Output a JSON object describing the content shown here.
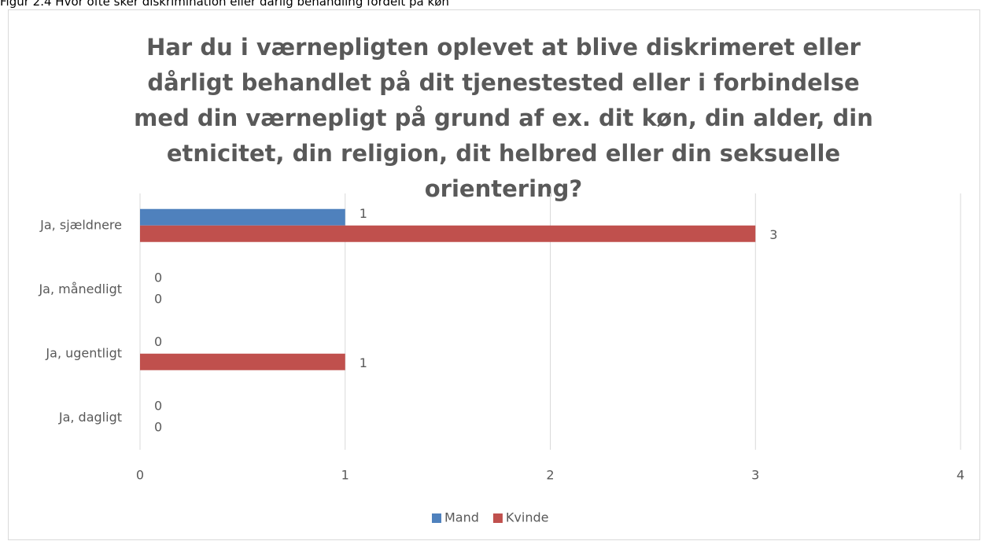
{
  "caption": "Figur 2.4 Hvor ofte sker diskrimination eller dårlig behandling fordelt på køn",
  "chart_data": {
    "type": "bar",
    "orientation": "horizontal",
    "title": "Har du i værnepligten oplevet at blive diskrimeret eller dårligt behandlet på dit tjenestested eller i forbindelse med din værnepligt på grund af ex. dit køn, din alder, din etnicitet, din religion, dit helbred eller din seksuelle orientering?",
    "categories": [
      "Ja, sjældnere",
      "Ja, månedligt",
      "Ja, ugentligt",
      "Ja, dagligt"
    ],
    "series": [
      {
        "name": "Mand",
        "color": "#4f81bd",
        "values": [
          1,
          0,
          0,
          0
        ]
      },
      {
        "name": "Kvinde",
        "color": "#c0504d",
        "values": [
          3,
          0,
          1,
          0
        ]
      }
    ],
    "xlim": [
      0,
      4
    ],
    "xticks": [
      0,
      1,
      2,
      3,
      4
    ],
    "grid": true,
    "legend": "bottom"
  }
}
